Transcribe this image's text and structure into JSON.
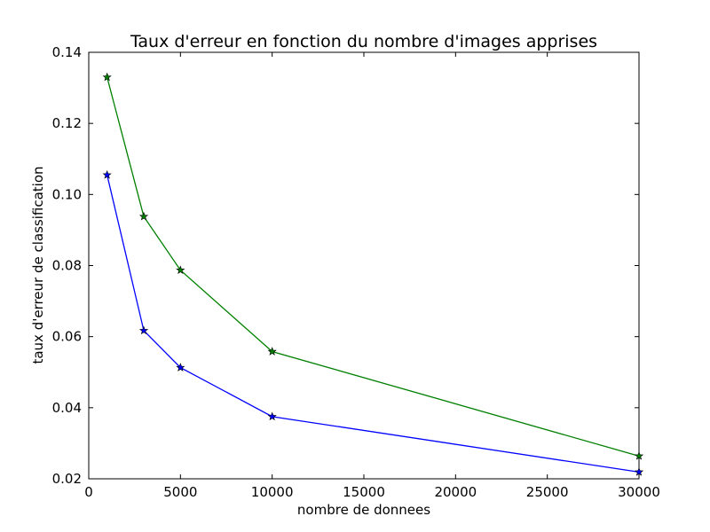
{
  "chart_data": {
    "type": "line",
    "title": "Taux d'erreur en fonction du nombre d'images apprises",
    "xlabel": "nombre de donnees",
    "ylabel": "taux d'erreur de classification",
    "xlim": [
      0,
      30000
    ],
    "ylim": [
      0.02,
      0.14
    ],
    "xticks": [
      0,
      5000,
      10000,
      15000,
      20000,
      25000,
      30000
    ],
    "xtick_labels": [
      "0",
      "5000",
      "10000",
      "15000",
      "20000",
      "25000",
      "30000"
    ],
    "yticks": [
      0.02,
      0.04,
      0.06,
      0.08,
      0.1,
      0.12,
      0.14
    ],
    "ytick_labels": [
      "0.02",
      "0.04",
      "0.06",
      "0.08",
      "0.10",
      "0.12",
      "0.14"
    ],
    "grid": false,
    "legend": "none",
    "marker": "star",
    "x": [
      1000,
      3000,
      5000,
      10000,
      30000
    ],
    "series": [
      {
        "color": "#0000ff",
        "values": [
          0.1055,
          0.0617,
          0.0513,
          0.0375,
          0.0219
        ]
      },
      {
        "color": "#008000",
        "values": [
          0.133,
          0.0938,
          0.0787,
          0.0558,
          0.0264
        ]
      }
    ]
  }
}
